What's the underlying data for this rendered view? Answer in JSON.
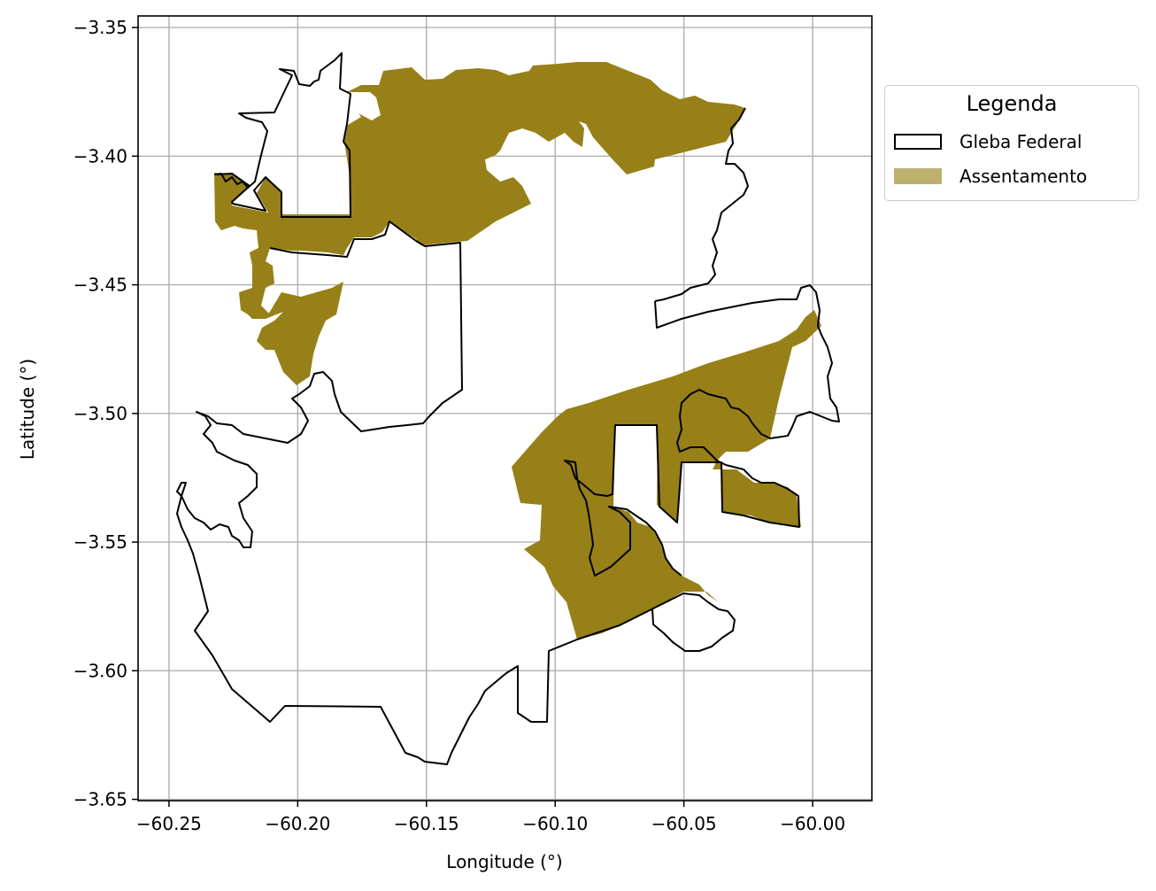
{
  "map": {
    "xlabel": "Longitude (°)",
    "ylabel": "Latitude (°)",
    "xlim": [
      -60.262,
      -59.977
    ],
    "ylim": [
      -3.6505,
      -3.3455
    ],
    "x_ticks": [
      -60.25,
      -60.2,
      -60.15,
      -60.1,
      -60.05,
      -60.0
    ],
    "y_ticks": [
      -3.35,
      -3.4,
      -3.45,
      -3.5,
      -3.55,
      -3.6,
      -3.65
    ],
    "x_tick_labels": [
      "−60.25",
      "−60.20",
      "−60.15",
      "−60.10",
      "−60.05",
      "−60.00"
    ],
    "y_tick_labels": [
      "−3.35",
      "−3.40",
      "−3.45",
      "−3.50",
      "−3.55",
      "−3.60",
      "−3.65"
    ],
    "grid": true,
    "colors": {
      "assentamento_fill": "#978018",
      "assentamento_legend": "#bdb06f",
      "gleba_edge": "#000000",
      "gleba_fill": "#ffffff",
      "grid": "#b0b0b0"
    }
  },
  "legend": {
    "title": "Legenda",
    "placement": "outside-right-top",
    "items": [
      {
        "label": "Gleba Federal",
        "style": "outline"
      },
      {
        "label": "Assentamento",
        "style": "filled"
      }
    ]
  }
}
